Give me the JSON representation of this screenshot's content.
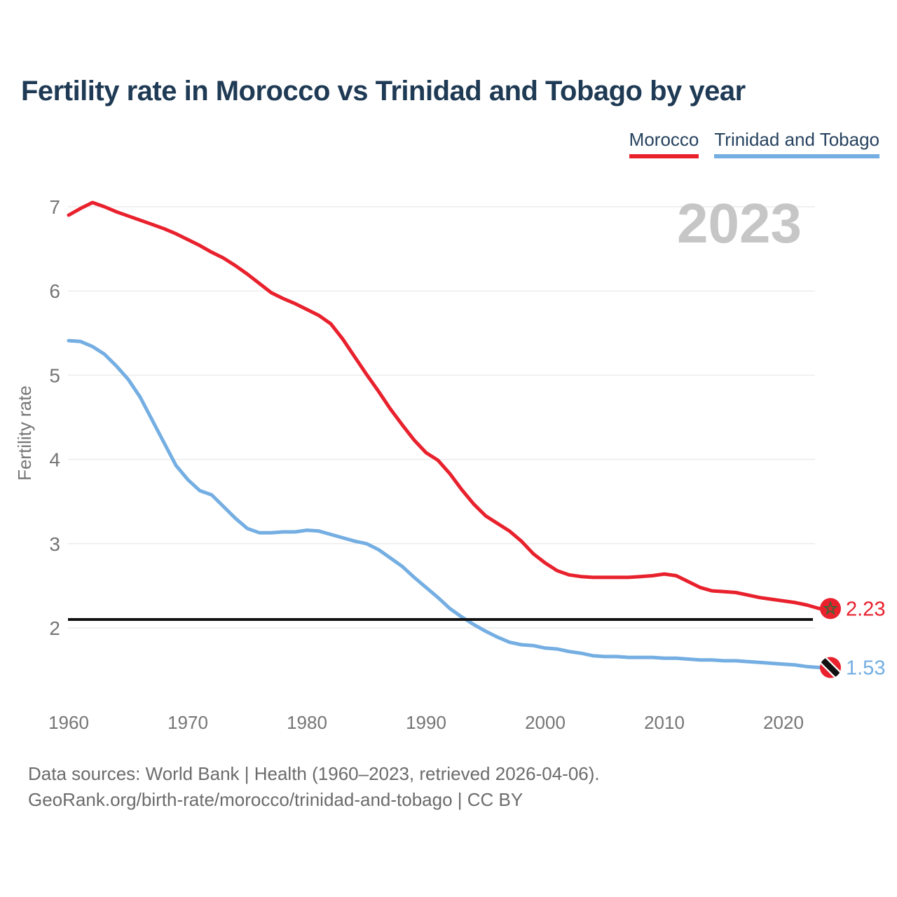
{
  "page": {
    "title": "Fertility rate in Morocco vs Trinidad and Tobago by year",
    "watermark_year": "2023",
    "footer_line1": "Data sources: World Bank | Health (1960–2023, retrieved 2026-04-06).",
    "footer_line2": "GeoRank.org/birth-rate/morocco/trinidad-and-tobago | CC BY"
  },
  "legend": {
    "items": [
      {
        "label": "Morocco",
        "color": "#e8212d"
      },
      {
        "label": "Trinidad and Tobago",
        "color": "#74aee2"
      }
    ]
  },
  "chart_data": {
    "type": "line",
    "title": "Fertility rate in Morocco vs Trinidad and Tobago by year",
    "xlabel": "",
    "ylabel": "Fertility rate",
    "xlim": [
      1960,
      2023
    ],
    "ylim": [
      1.4,
      7.2
    ],
    "grid": "horizontal",
    "legend_position": "top-right",
    "x_ticks": [
      1960,
      1970,
      1980,
      1990,
      2000,
      2010,
      2020
    ],
    "y_ticks": [
      2,
      3,
      4,
      5,
      6,
      7
    ],
    "reference_line": {
      "value": 2.1,
      "color": "#111111"
    },
    "x": [
      1960,
      1961,
      1962,
      1963,
      1964,
      1965,
      1966,
      1967,
      1968,
      1969,
      1970,
      1971,
      1972,
      1973,
      1974,
      1975,
      1976,
      1977,
      1978,
      1979,
      1980,
      1981,
      1982,
      1983,
      1984,
      1985,
      1986,
      1987,
      1988,
      1989,
      1990,
      1991,
      1992,
      1993,
      1994,
      1995,
      1996,
      1997,
      1998,
      1999,
      2000,
      2001,
      2002,
      2003,
      2004,
      2005,
      2006,
      2007,
      2008,
      2009,
      2010,
      2011,
      2012,
      2013,
      2014,
      2015,
      2016,
      2017,
      2018,
      2019,
      2020,
      2021,
      2022,
      2023
    ],
    "series": [
      {
        "name": "Morocco",
        "color": "#e8212d",
        "end_label": "2.23",
        "values": [
          6.9,
          6.98,
          7.05,
          7.0,
          6.94,
          6.89,
          6.84,
          6.79,
          6.74,
          6.68,
          6.61,
          6.54,
          6.46,
          6.39,
          6.3,
          6.2,
          6.09,
          5.98,
          5.91,
          5.85,
          5.78,
          5.71,
          5.61,
          5.43,
          5.22,
          5.01,
          4.81,
          4.6,
          4.41,
          4.23,
          4.08,
          3.99,
          3.83,
          3.64,
          3.47,
          3.33,
          3.24,
          3.15,
          3.03,
          2.88,
          2.77,
          2.68,
          2.63,
          2.61,
          2.6,
          2.6,
          2.6,
          2.6,
          2.61,
          2.62,
          2.64,
          2.62,
          2.55,
          2.48,
          2.44,
          2.43,
          2.42,
          2.39,
          2.36,
          2.34,
          2.32,
          2.3,
          2.27,
          2.23
        ]
      },
      {
        "name": "Trinidad and Tobago",
        "color": "#74aee2",
        "end_label": "1.53",
        "values": [
          5.41,
          5.4,
          5.34,
          5.25,
          5.11,
          4.95,
          4.74,
          4.47,
          4.2,
          3.93,
          3.76,
          3.63,
          3.58,
          3.44,
          3.3,
          3.18,
          3.13,
          3.13,
          3.14,
          3.14,
          3.16,
          3.15,
          3.11,
          3.07,
          3.03,
          3.0,
          2.93,
          2.83,
          2.73,
          2.6,
          2.48,
          2.36,
          2.23,
          2.13,
          2.04,
          1.96,
          1.89,
          1.83,
          1.8,
          1.79,
          1.76,
          1.75,
          1.72,
          1.7,
          1.67,
          1.66,
          1.66,
          1.65,
          1.65,
          1.65,
          1.64,
          1.64,
          1.63,
          1.62,
          1.62,
          1.61,
          1.61,
          1.6,
          1.59,
          1.58,
          1.57,
          1.56,
          1.54,
          1.53
        ]
      }
    ]
  }
}
